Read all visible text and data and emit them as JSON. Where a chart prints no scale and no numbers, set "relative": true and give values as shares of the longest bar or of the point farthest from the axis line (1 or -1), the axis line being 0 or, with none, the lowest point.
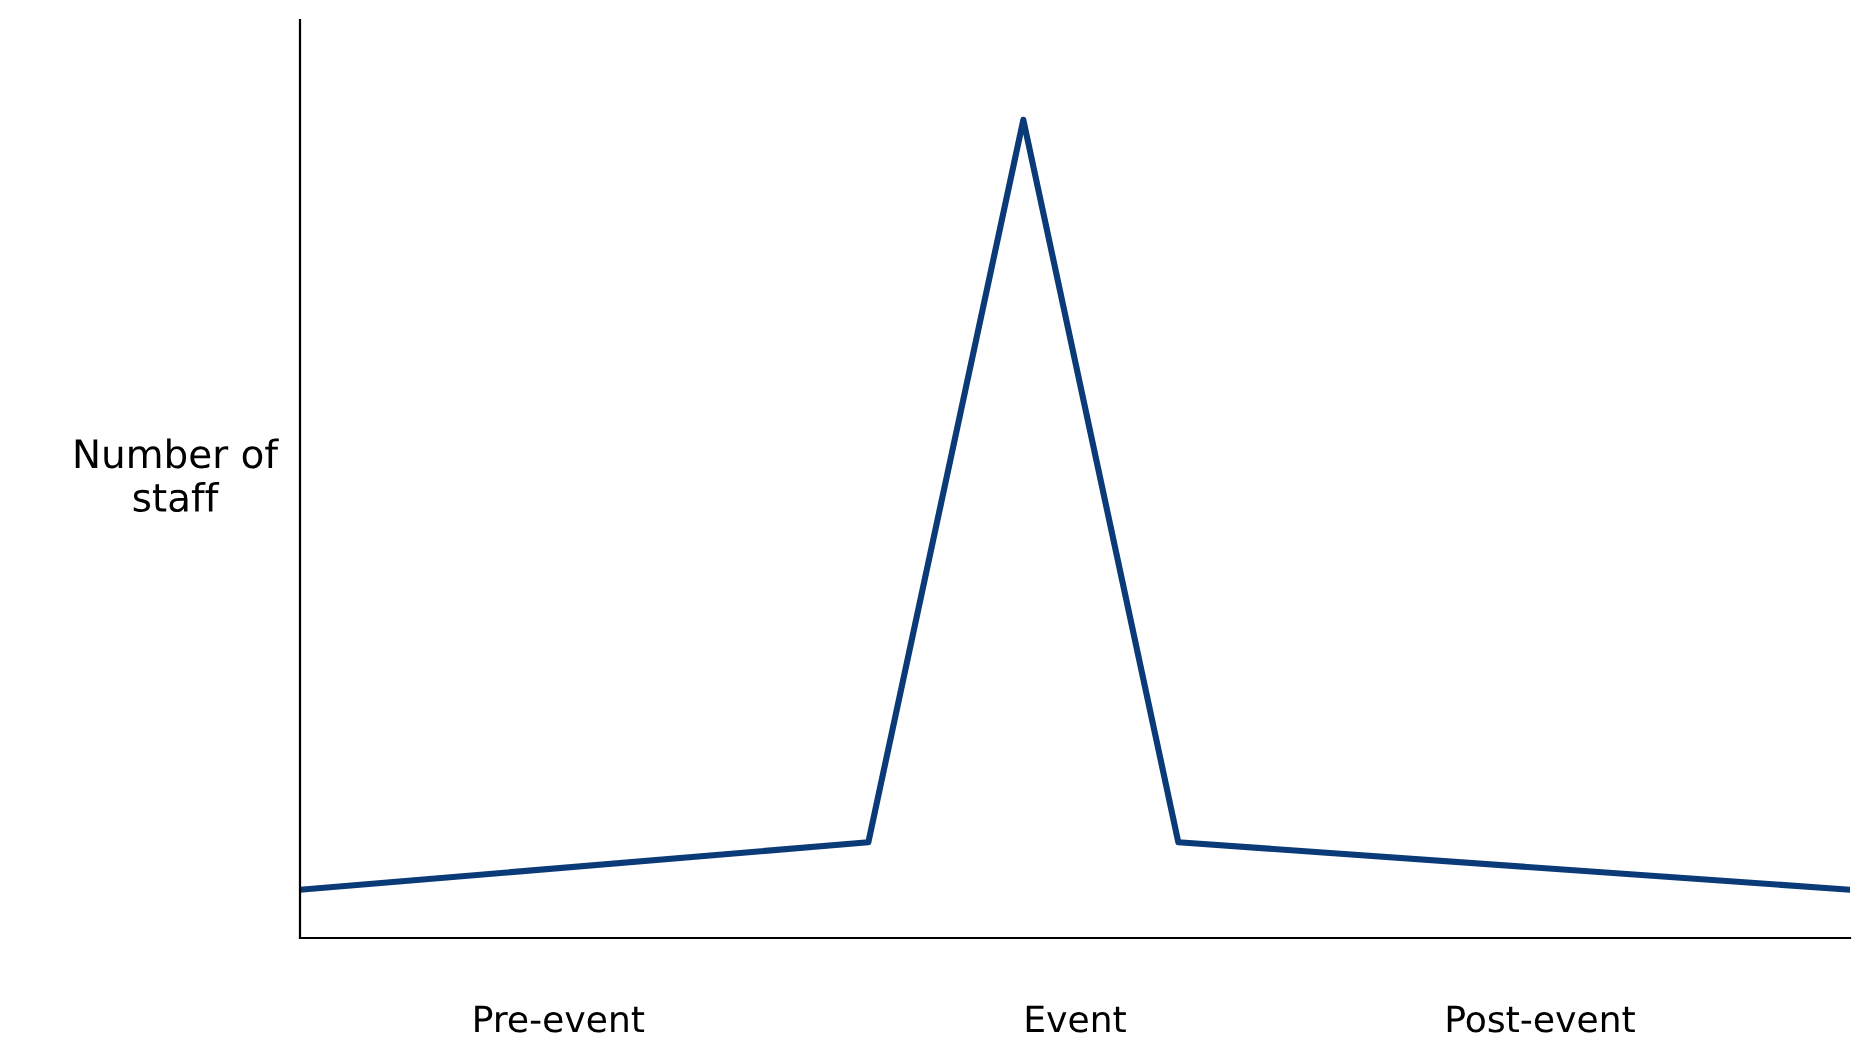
{
  "chart_data": {
    "type": "line",
    "ylabel": "Number of\nstaff",
    "relative": true,
    "categories": [
      null,
      null,
      null,
      null,
      null,
      "Pre-event",
      null,
      null,
      null,
      null,
      null,
      null,
      null,
      null,
      null,
      "Event",
      null,
      null,
      null,
      null,
      null,
      null,
      null,
      null,
      "Post-event",
      null,
      null,
      null,
      null,
      null,
      null
    ],
    "series": [
      {
        "color": "#0b3a78",
        "values": [
          0.059,
          null,
          null,
          null,
          null,
          null,
          null,
          null,
          null,
          null,
          null,
          0.117,
          null,
          null,
          1,
          null,
          null,
          0.117,
          null,
          null,
          null,
          null,
          null,
          null,
          null,
          null,
          null,
          null,
          null,
          null,
          0.059
        ]
      }
    ],
    "grid": false,
    "legend": false,
    "marker": "none",
    "line_style": "solid"
  }
}
